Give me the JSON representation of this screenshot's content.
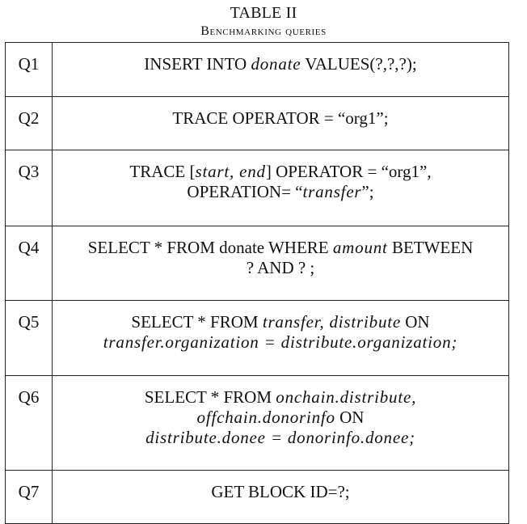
{
  "caption": {
    "table_label": "TABLE II",
    "title": "Benchmarking queries"
  },
  "queries": [
    {
      "id": "Q1",
      "pre": "INSERT INTO ",
      "table": "donate",
      "post": " VALUES(?,?,?);"
    },
    {
      "id": "Q2",
      "text": "TRACE OPERATOR = “org1”;"
    },
    {
      "id": "Q3",
      "line1_pre": "TRACE [",
      "range": "start, end",
      "line1_post": "] OPERATOR = “org1”,",
      "line2_pre": "OPERATION= “",
      "op": "transfer",
      "line2_post": "”;"
    },
    {
      "id": "Q4",
      "pre": "SELECT * FROM donate WHERE ",
      "col": "amount",
      "post": " BETWEEN",
      "line2": "? AND ? ;"
    },
    {
      "id": "Q5",
      "pre": "SELECT * FROM ",
      "t1": "transfer, distribute",
      "post": " ON",
      "line2": "transfer.organization = distribute.organization;"
    },
    {
      "id": "Q6",
      "pre": "SELECT * FROM ",
      "t1": "onchain.distribute,",
      "line2a": "offchain.donorinfo",
      "line2b": " ON",
      "line3": "distribute.donee = donorinfo.donee;"
    },
    {
      "id": "Q7",
      "text": "GET BLOCK ID=?;"
    }
  ]
}
